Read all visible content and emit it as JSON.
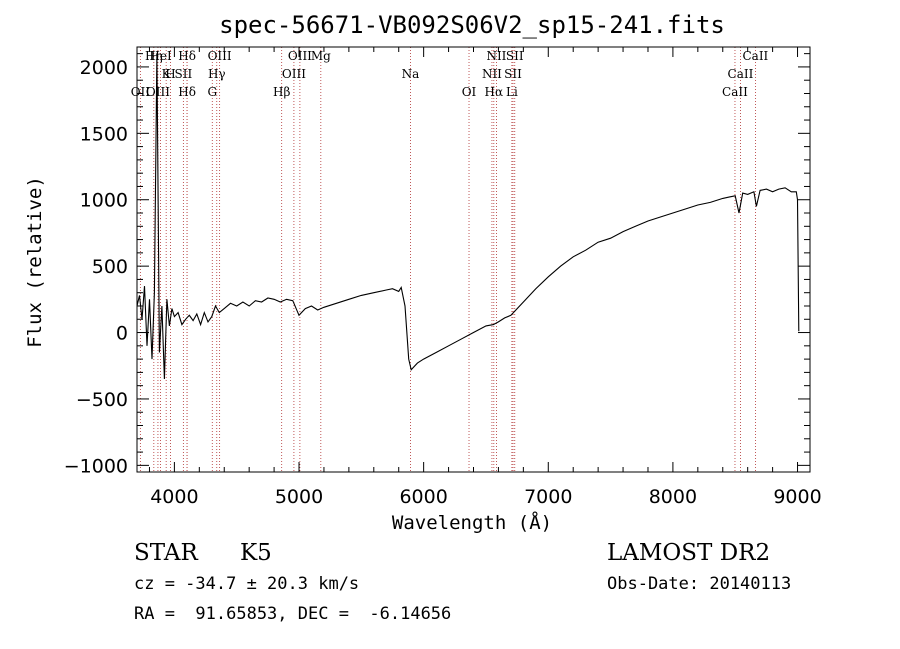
{
  "chart_data": {
    "type": "line",
    "title": "spec-56671-VB092S06V2_sp15-241.fits",
    "xlabel": "Wavelength (Å)",
    "ylabel": "Flux (relative)",
    "xlim": [
      3700,
      9100
    ],
    "ylim": [
      -1050,
      2150
    ],
    "xticks": [
      4000,
      5000,
      6000,
      7000,
      8000,
      9000
    ],
    "yticks": [
      -1000,
      -500,
      0,
      500,
      1000,
      1500,
      2000
    ],
    "grid": false,
    "legend": "none",
    "series": [
      {
        "x": [
          3700,
          3720,
          3740,
          3760,
          3780,
          3800,
          3820,
          3840,
          3860,
          3880,
          3900,
          3920,
          3940,
          3960,
          3980,
          4000,
          4030,
          4060,
          4090,
          4120,
          4150,
          4180,
          4210,
          4240,
          4270,
          4300,
          4330,
          4360,
          4400,
          4450,
          4500,
          4550,
          4600,
          4650,
          4700,
          4750,
          4800,
          4850,
          4900,
          4950,
          5000,
          5050,
          5100,
          5150,
          5200,
          5300,
          5400,
          5500,
          5600,
          5700,
          5750,
          5800,
          5820,
          5850,
          5880,
          5900,
          5950,
          6000,
          6100,
          6200,
          6300,
          6400,
          6500,
          6560,
          6600,
          6650,
          6700,
          6800,
          6900,
          7000,
          7100,
          7200,
          7300,
          7400,
          7500,
          7600,
          7700,
          7800,
          7900,
          8000,
          8100,
          8200,
          8300,
          8400,
          8450,
          8500,
          8530,
          8560,
          8600,
          8650,
          8670,
          8700,
          8750,
          8800,
          8850,
          8900,
          8950,
          8990,
          9000,
          9010
        ],
        "y": [
          200,
          280,
          100,
          350,
          -100,
          250,
          -200,
          300,
          2100,
          -150,
          200,
          -350,
          250,
          50,
          180,
          120,
          150,
          60,
          100,
          130,
          90,
          140,
          60,
          150,
          80,
          120,
          200,
          150,
          180,
          220,
          200,
          230,
          200,
          240,
          230,
          260,
          250,
          230,
          250,
          240,
          130,
          180,
          200,
          170,
          190,
          220,
          250,
          280,
          300,
          320,
          330,
          310,
          340,
          200,
          -200,
          -280,
          -230,
          -200,
          -150,
          -100,
          -50,
          0,
          50,
          60,
          80,
          110,
          130,
          230,
          330,
          420,
          500,
          570,
          620,
          680,
          710,
          760,
          800,
          840,
          870,
          900,
          930,
          960,
          980,
          1010,
          1020,
          1030,
          900,
          1050,
          1040,
          1060,
          950,
          1070,
          1080,
          1060,
          1080,
          1090,
          1060,
          1060,
          1000,
          10
        ]
      }
    ],
    "lines_marked": [
      {
        "label": "Hδ",
        "x": 4102
      },
      {
        "label": "K",
        "x": 3934
      },
      {
        "label": "OII",
        "x": 3727
      },
      {
        "label": "HeI",
        "x": 3889
      },
      {
        "label": "SII",
        "x": 4072
      },
      {
        "label": "OIII",
        "x": 3868
      },
      {
        "label": "Hη",
        "x": 3835
      },
      {
        "label": "H",
        "x": 3969
      },
      {
        "label": "Hδ",
        "x": 4102
      },
      {
        "label": "OIII",
        "x": 4363
      },
      {
        "label": "Hγ",
        "x": 4340
      },
      {
        "label": "G",
        "x": 4304
      },
      {
        "label": "OIII",
        "x": 5007
      },
      {
        "label": "OIII",
        "x": 4959
      },
      {
        "label": "Hβ",
        "x": 4861
      },
      {
        "label": "Mg",
        "x": 5175
      },
      {
        "label": "Na",
        "x": 5894
      },
      {
        "label": "OI",
        "x": 6364
      },
      {
        "label": "NII",
        "x": 6584
      },
      {
        "label": "SII",
        "x": 6717
      },
      {
        "label": "Hα",
        "x": 6563
      },
      {
        "label": "SII",
        "x": 6731
      },
      {
        "label": "NII",
        "x": 6548
      },
      {
        "label": "Li",
        "x": 6708
      },
      {
        "label": "CaII",
        "x": 8662
      },
      {
        "label": "CaII",
        "x": 8542
      },
      {
        "label": "CaII",
        "x": 8498
      }
    ]
  },
  "info": {
    "object_class": "STAR",
    "subclass": "K5",
    "survey": "LAMOST DR2",
    "redshift": "cz = -34.7 ± 20.3 km/s",
    "obs_date": "Obs-Date: 20140113",
    "coords": "RA =  91.65853, DEC =  -6.14656"
  }
}
